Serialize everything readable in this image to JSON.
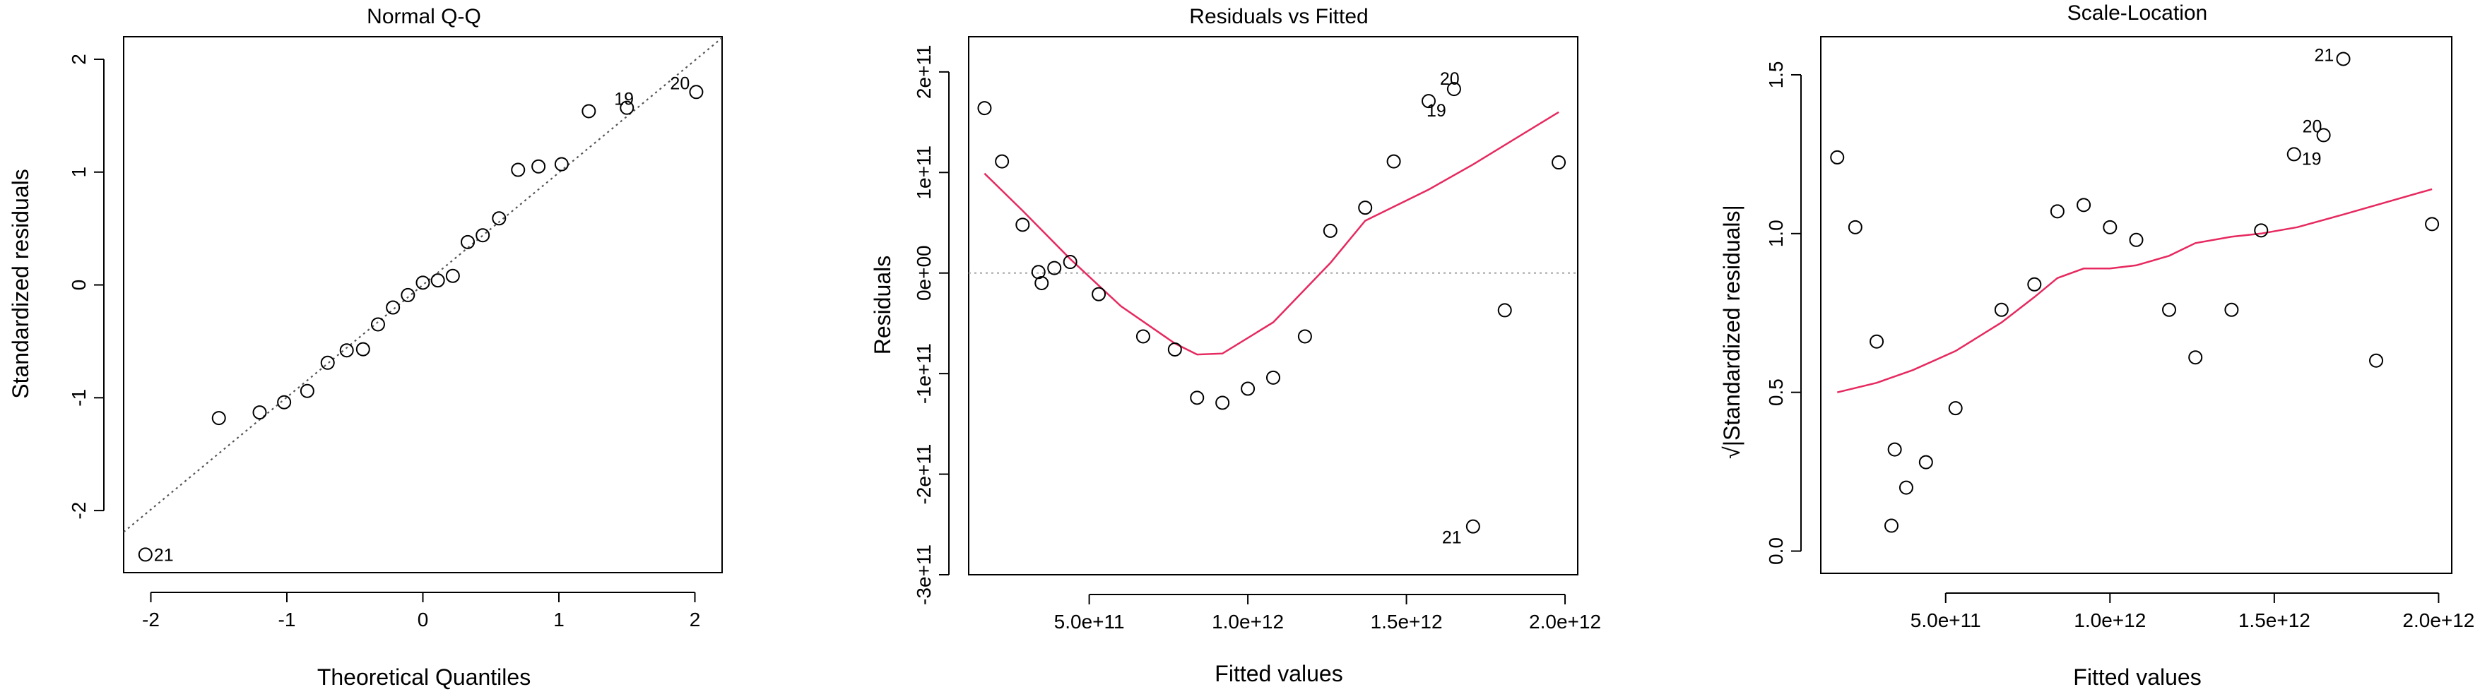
{
  "chart_data": [
    {
      "type": "scatter",
      "title": "Normal Q-Q",
      "xlabel": "Theoretical Quantiles",
      "ylabel": "Standardized residuals",
      "xlim": [
        -2.2,
        2.2
      ],
      "ylim": [
        -2.55,
        2.2
      ],
      "xticks": [
        -2,
        -1,
        0,
        1,
        2
      ],
      "xtick_labels": [
        "-2",
        "-1",
        "0",
        "1",
        "2"
      ],
      "yticks": [
        -2,
        -1,
        0,
        1,
        2
      ],
      "ytick_labels": [
        "-2",
        "-1",
        "0",
        "1",
        "2"
      ],
      "points": [
        {
          "x": -2.04,
          "y": -2.39,
          "label": "21"
        },
        {
          "x": -1.5,
          "y": -1.18
        },
        {
          "x": -1.2,
          "y": -1.13
        },
        {
          "x": -1.02,
          "y": -1.04
        },
        {
          "x": -0.85,
          "y": -0.94
        },
        {
          "x": -0.7,
          "y": -0.69
        },
        {
          "x": -0.56,
          "y": -0.58
        },
        {
          "x": -0.44,
          "y": -0.57
        },
        {
          "x": -0.33,
          "y": -0.35
        },
        {
          "x": -0.22,
          "y": -0.2
        },
        {
          "x": -0.11,
          "y": -0.09
        },
        {
          "x": 0.0,
          "y": 0.02
        },
        {
          "x": 0.11,
          "y": 0.04
        },
        {
          "x": 0.22,
          "y": 0.08
        },
        {
          "x": 0.33,
          "y": 0.38
        },
        {
          "x": 0.44,
          "y": 0.44
        },
        {
          "x": 0.56,
          "y": 0.59
        },
        {
          "x": 0.7,
          "y": 1.02
        },
        {
          "x": 0.85,
          "y": 1.05
        },
        {
          "x": 1.02,
          "y": 1.07
        },
        {
          "x": 1.22,
          "y": 1.54
        },
        {
          "x": 1.5,
          "y": 1.57,
          "label": "19"
        },
        {
          "x": 2.01,
          "y": 1.71,
          "label": "20"
        }
      ],
      "reference_line": {
        "x": [
          -2.2,
          2.2
        ],
        "y": [
          -2.19,
          2.19
        ],
        "style": "dotted",
        "color": "#555555"
      }
    },
    {
      "type": "scatter",
      "title": "Residuals vs Fitted",
      "xlabel": "Fitted values",
      "ylabel": "Residuals",
      "xlim": [
        120000000000,
        2040000000000
      ],
      "ylim": [
        -300000000000,
        235000000000
      ],
      "xticks": [
        500000000000,
        1000000000000,
        1500000000000,
        2000000000000
      ],
      "xtick_labels": [
        "5.0e+11",
        "1.0e+12",
        "1.5e+12",
        "2.0e+12"
      ],
      "yticks": [
        -300000000000,
        -200000000000,
        -100000000000,
        0,
        100000000000,
        200000000000
      ],
      "ytick_labels": [
        "-3e+11",
        "-2e+11",
        "-1e+11",
        "0e+00",
        "1e+11",
        "2e+11"
      ],
      "points": [
        {
          "x": 170000000000,
          "y": 164000000000
        },
        {
          "x": 225000000000,
          "y": 111000000000
        },
        {
          "x": 290000000000,
          "y": 48000000000
        },
        {
          "x": 340000000000,
          "y": 1000000000
        },
        {
          "x": 350000000000,
          "y": -10000000000
        },
        {
          "x": 390000000000,
          "y": 5000000000
        },
        {
          "x": 440000000000,
          "y": 11000000000
        },
        {
          "x": 530000000000,
          "y": -21000000000
        },
        {
          "x": 670000000000,
          "y": -63000000000
        },
        {
          "x": 770000000000,
          "y": -76000000000
        },
        {
          "x": 840000000000,
          "y": -124000000000
        },
        {
          "x": 920000000000,
          "y": -129000000000
        },
        {
          "x": 1000000000000,
          "y": -115000000000
        },
        {
          "x": 1080000000000,
          "y": -104000000000
        },
        {
          "x": 1180000000000,
          "y": -63000000000
        },
        {
          "x": 1260000000000,
          "y": 42000000000
        },
        {
          "x": 1370000000000,
          "y": 65000000000
        },
        {
          "x": 1460000000000,
          "y": 111000000000
        },
        {
          "x": 1570000000000,
          "y": 171000000000,
          "label": "19"
        },
        {
          "x": 1650000000000,
          "y": 183000000000,
          "label": "20"
        },
        {
          "x": 1710000000000,
          "y": -252000000000,
          "label": "21"
        },
        {
          "x": 1810000000000,
          "y": -37000000000
        },
        {
          "x": 1980000000000,
          "y": 110000000000
        }
      ],
      "reference_line": {
        "y": 0,
        "style": "dotted",
        "color": "#aaaaaa"
      },
      "smooth": {
        "color": "#e6295f",
        "x": [
          170000000000,
          290000000000,
          440000000000,
          600000000000,
          770000000000,
          840000000000,
          920000000000,
          1080000000000,
          1260000000000,
          1370000000000,
          1570000000000,
          1710000000000,
          1980000000000
        ],
        "y": [
          99000000000,
          62000000000,
          14000000000,
          -33000000000,
          -70000000000,
          -81000000000,
          -80000000000,
          -49000000000,
          10000000000,
          52000000000,
          83000000000,
          108000000000,
          160000000000
        ]
      }
    },
    {
      "type": "scatter",
      "title": "Scale-Location",
      "xlabel": "Fitted values",
      "ylabel": "√|Standardized residuals|",
      "xlim": [
        120000000000,
        2040000000000
      ],
      "ylim": [
        -0.07,
        1.62
      ],
      "xticks": [
        500000000000,
        1000000000000,
        1500000000000,
        2000000000000
      ],
      "xtick_labels": [
        "5.0e+11",
        "1.0e+12",
        "1.5e+12",
        "2.0e+12"
      ],
      "yticks": [
        0.0,
        0.5,
        1.0,
        1.5
      ],
      "ytick_labels": [
        "0.0",
        "0.5",
        "1.0",
        "1.5"
      ],
      "points": [
        {
          "x": 170000000000,
          "y": 1.24
        },
        {
          "x": 225000000000,
          "y": 1.02
        },
        {
          "x": 290000000000,
          "y": 0.66
        },
        {
          "x": 335000000000,
          "y": 0.08
        },
        {
          "x": 345000000000,
          "y": 0.32
        },
        {
          "x": 380000000000,
          "y": 0.2
        },
        {
          "x": 440000000000,
          "y": 0.28
        },
        {
          "x": 530000000000,
          "y": 0.45
        },
        {
          "x": 670000000000,
          "y": 0.76
        },
        {
          "x": 770000000000,
          "y": 0.84
        },
        {
          "x": 840000000000,
          "y": 1.07
        },
        {
          "x": 920000000000,
          "y": 1.09
        },
        {
          "x": 1000000000000,
          "y": 1.02
        },
        {
          "x": 1080000000000,
          "y": 0.98
        },
        {
          "x": 1180000000000,
          "y": 0.76
        },
        {
          "x": 1260000000000,
          "y": 0.61
        },
        {
          "x": 1370000000000,
          "y": 0.76
        },
        {
          "x": 1460000000000,
          "y": 1.01
        },
        {
          "x": 1560000000000,
          "y": 1.25,
          "label": "19"
        },
        {
          "x": 1650000000000,
          "y": 1.31,
          "label": "20"
        },
        {
          "x": 1710000000000,
          "y": 1.55,
          "label": "21"
        },
        {
          "x": 1810000000000,
          "y": 0.6
        },
        {
          "x": 1980000000000,
          "y": 1.03
        }
      ],
      "smooth": {
        "color": "#e6295f",
        "x": [
          170000000000,
          290000000000,
          400000000000,
          530000000000,
          670000000000,
          770000000000,
          840000000000,
          920000000000,
          1000000000000,
          1080000000000,
          1180000000000,
          1260000000000,
          1370000000000,
          1460000000000,
          1570000000000,
          1710000000000,
          1980000000000
        ],
        "y": [
          0.5,
          0.53,
          0.57,
          0.63,
          0.72,
          0.8,
          0.86,
          0.89,
          0.89,
          0.9,
          0.93,
          0.97,
          0.99,
          1.0,
          1.02,
          1.06,
          1.14
        ]
      }
    }
  ]
}
